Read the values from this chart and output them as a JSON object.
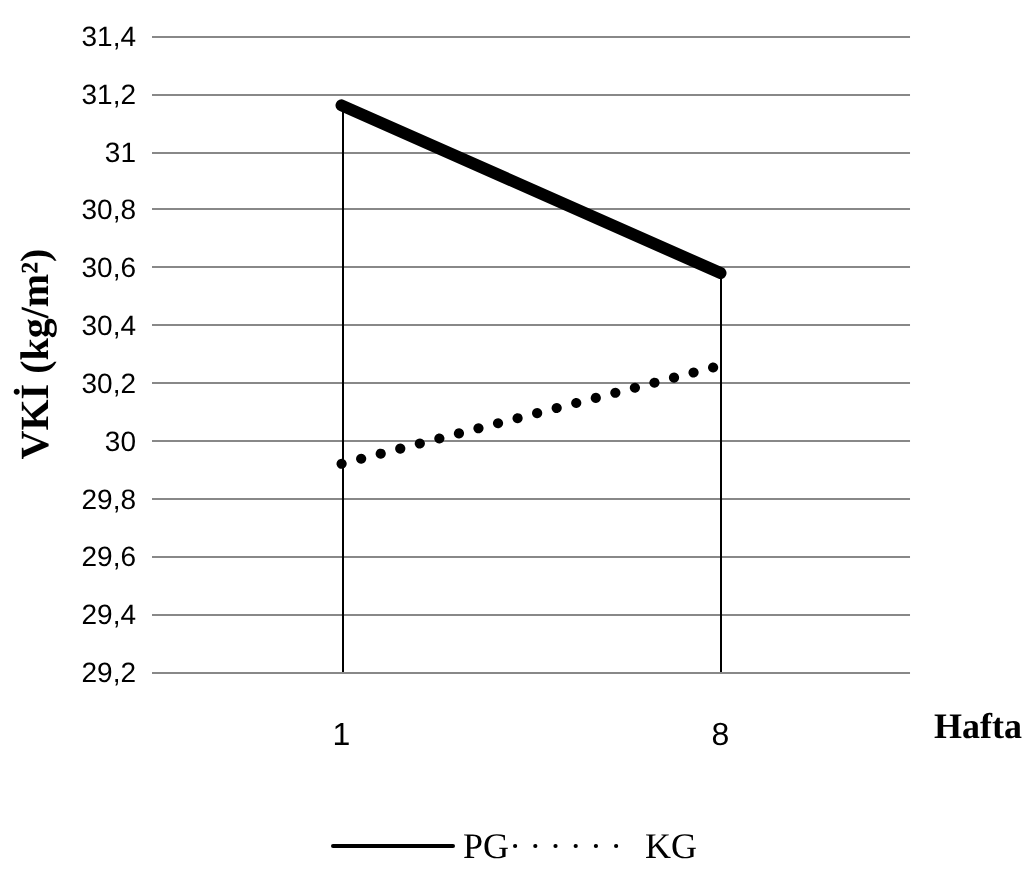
{
  "chart_data": {
    "type": "line",
    "xlabel": "Hafta",
    "ylabel": "VKİ (kg/m²)",
    "categories": [
      "1",
      "8"
    ],
    "series": [
      {
        "name": "PG",
        "color": "#000000",
        "values": [
          31.16,
          30.58
        ],
        "line_style": "solid"
      },
      {
        "name": "KG",
        "color": "#000000",
        "values": [
          29.92,
          30.26
        ],
        "line_style": "dotted"
      }
    ],
    "ylim": [
      29.2,
      31.4
    ],
    "yticks": [
      {
        "value": 29.2,
        "label": "29,2"
      },
      {
        "value": 29.4,
        "label": "29,4"
      },
      {
        "value": 29.6,
        "label": "29,6"
      },
      {
        "value": 29.8,
        "label": "29,8"
      },
      {
        "value": 30,
        "label": "30"
      },
      {
        "value": 30.2,
        "label": "30,2"
      },
      {
        "value": 30.4,
        "label": "30,4"
      },
      {
        "value": 30.6,
        "label": "30,6"
      },
      {
        "value": 30.8,
        "label": "30,8"
      },
      {
        "value": 31,
        "label": "31"
      },
      {
        "value": 31.2,
        "label": "31,2"
      },
      {
        "value": 31.4,
        "label": "31,4"
      }
    ],
    "ref_lines": [
      {
        "axis": "x",
        "value": "1",
        "color": "#000000"
      },
      {
        "axis": "x",
        "value": "8",
        "color": "#000000"
      }
    ],
    "grid": "y",
    "legend": "bottom",
    "marker": "none"
  }
}
